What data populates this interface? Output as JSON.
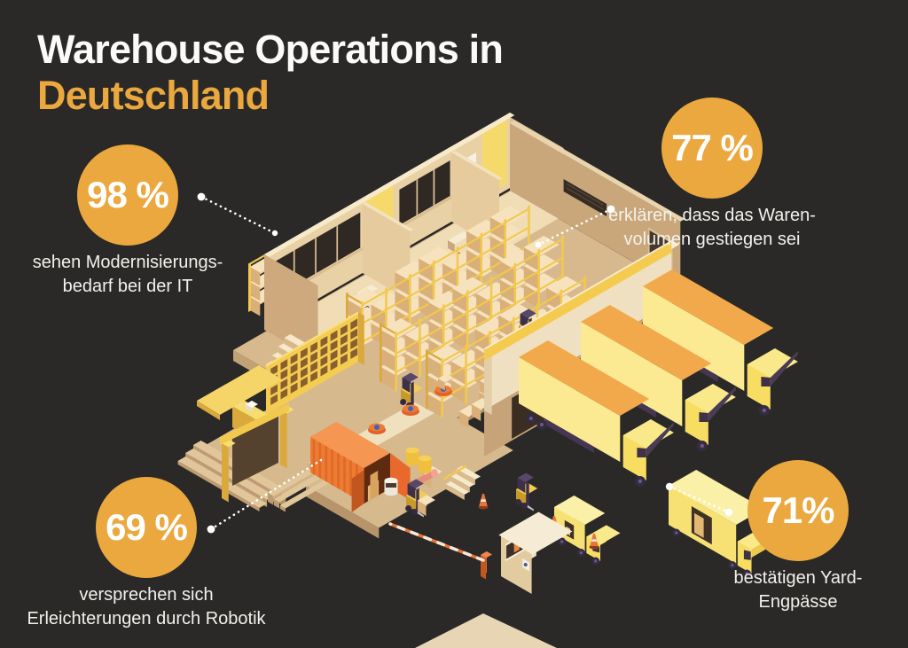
{
  "title": {
    "line1": "Warehouse Operations in",
    "line2": "Deutschland"
  },
  "colors": {
    "background": "#2A2927",
    "accent": "#EBA83E",
    "text_primary": "#FFFFFF"
  },
  "stats": [
    {
      "id": "it-modernization",
      "value": "98 %",
      "caption_line1": "sehen Modernisierungs-",
      "caption_line2": "bedarf bei der IT"
    },
    {
      "id": "volume-increase",
      "value": "77 %",
      "caption_line1": "erklären, dass das Waren-",
      "caption_line2": "volumen gestiegen sei"
    },
    {
      "id": "robotics-relief",
      "value": "69 %",
      "caption_line1": "versprechen sich",
      "caption_line2": "Erleichterungen durch Robotik"
    },
    {
      "id": "yard-bottlenecks",
      "value": "71%",
      "caption_line1": "bestätigen Yard-",
      "caption_line2": "Engpässe"
    }
  ]
}
